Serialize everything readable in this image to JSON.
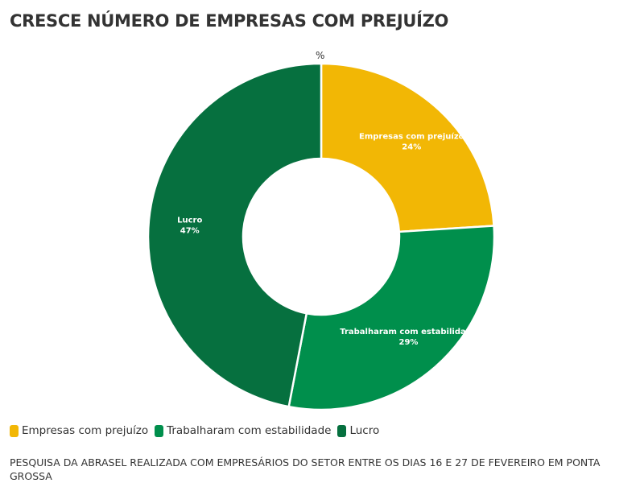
{
  "title": "CRESCE NÚMERO DE EMPRESAS COM PREJUÍZO",
  "note": "PESQUISA DA ABRASEL REALIZADA COM EMPRESÁRIOS DO SETOR ENTRE OS DIAS 16 E 27 DE FEVEREIRO EM PONTA GROSSA",
  "chart_data": {
    "type": "pie",
    "variant": "donut",
    "unit_label": "%",
    "title": "CRESCE NÚMERO DE EMPRESAS COM PREJUÍZO",
    "legend_position": "bottom-left",
    "slices": [
      {
        "label": "Empresas com prejuízo",
        "value": 24,
        "value_label": "24%",
        "color": "#F2B705"
      },
      {
        "label": "Trabalharam com estabilidade",
        "value": 29,
        "value_label": "29%",
        "color": "#008F4C"
      },
      {
        "label": "Lucro",
        "value": 47,
        "value_label": "47%",
        "color": "#06703F"
      }
    ]
  }
}
